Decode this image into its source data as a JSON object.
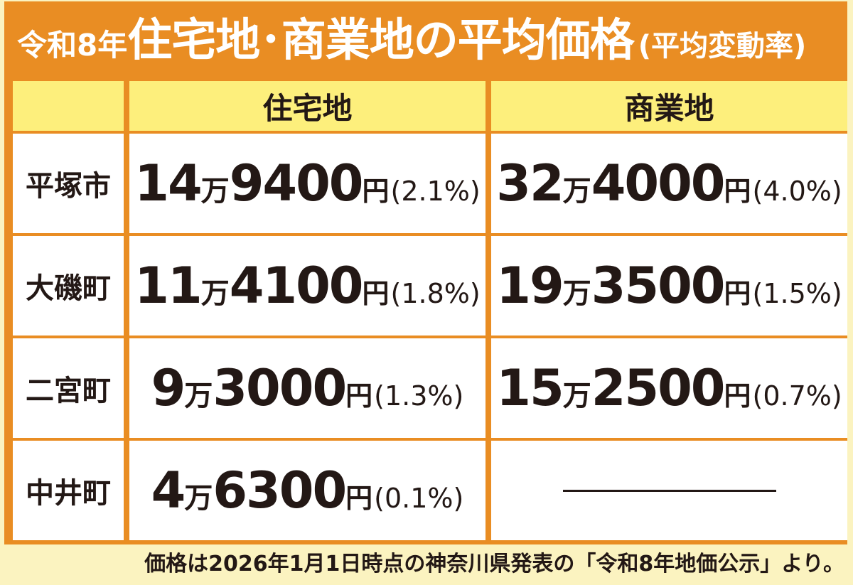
{
  "title": {
    "era": "令和8年",
    "main": "住宅地･商業地の平均価格",
    "sub": "(平均変動率)"
  },
  "columns": {
    "residential": "住宅地",
    "commercial": "商業地"
  },
  "rows": [
    {
      "area": "平塚市",
      "residential": {
        "man": "14",
        "man_unit": "万",
        "rest": "9400",
        "yen": "円",
        "rate": "(2.1%)"
      },
      "commercial": {
        "man": "32",
        "man_unit": "万",
        "rest": "4000",
        "yen": "円",
        "rate": "(4.0%)"
      }
    },
    {
      "area": "大磯町",
      "residential": {
        "man": "11",
        "man_unit": "万",
        "rest": "4100",
        "yen": "円",
        "rate": "(1.8%)"
      },
      "commercial": {
        "man": "19",
        "man_unit": "万",
        "rest": "3500",
        "yen": "円",
        "rate": "(1.5%)"
      }
    },
    {
      "area": "二宮町",
      "residential": {
        "man": "9",
        "man_unit": "万",
        "rest": "3000",
        "yen": "円",
        "rate": "(1.3%)"
      },
      "commercial": {
        "man": "15",
        "man_unit": "万",
        "rest": "2500",
        "yen": "円",
        "rate": "(0.7%)"
      }
    },
    {
      "area": "中井町",
      "residential": {
        "man": "4",
        "man_unit": "万",
        "rest": "6300",
        "yen": "円",
        "rate": "(0.1%)"
      },
      "commercial": null
    }
  ],
  "footnote": "価格は2026年1月1日時点の神奈川県発表の「令和8年地価公示」より。",
  "colors": {
    "frame": "#e98d23",
    "header_fill": "#fdef7c",
    "background": "#fbf3c0",
    "text": "#231815"
  }
}
